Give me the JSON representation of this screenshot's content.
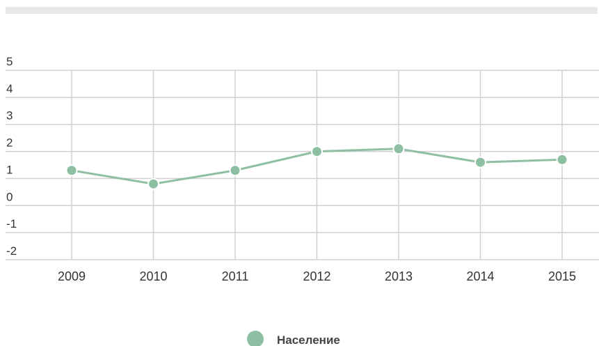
{
  "chart_data": {
    "type": "line",
    "categories": [
      "2009",
      "2010",
      "2011",
      "2012",
      "2013",
      "2014",
      "2015"
    ],
    "series": [
      {
        "name": "Население",
        "values": [
          1.3,
          0.8,
          1.3,
          2.0,
          2.1,
          1.6,
          1.7
        ]
      }
    ],
    "yticks": [
      "5",
      "4",
      "3",
      "2",
      "1",
      "0",
      "-1",
      "-2"
    ],
    "ylim": [
      -2,
      5
    ],
    "grid": true,
    "legend": "bottom-center",
    "series_color": "#8dbfa3",
    "grid_color": "#d0d0d0",
    "bar_color": "#e8e8e8"
  }
}
